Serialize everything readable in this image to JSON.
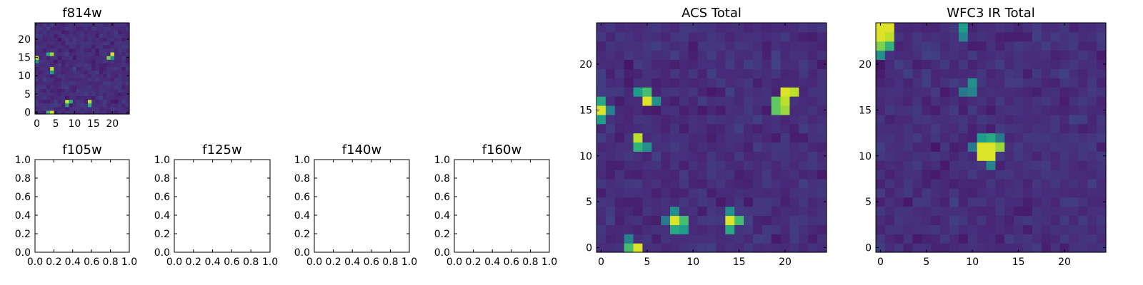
{
  "figure": {
    "colormap": [
      "#440154",
      "#482878",
      "#3e4989",
      "#31688e",
      "#26828e",
      "#1f9e89",
      "#35b779",
      "#6ece58",
      "#b5de2b",
      "#fde725"
    ],
    "axis_color": "#000000"
  },
  "chart_data": [
    {
      "type": "heatmap",
      "id": "f814w",
      "title": "f814w",
      "grid": false,
      "xticks": [
        "0",
        "5",
        "10",
        "15",
        "20"
      ],
      "yticks": [
        "0",
        "5",
        "10",
        "15",
        "20"
      ],
      "xlim": [
        -0.5,
        24.5
      ],
      "ylim": [
        -0.5,
        24.5
      ],
      "bright_sources": [
        [
          4,
          0,
          0.95
        ],
        [
          3,
          0,
          0.7
        ],
        [
          0,
          15,
          0.9
        ],
        [
          0,
          14,
          0.5
        ],
        [
          4,
          16,
          0.85
        ],
        [
          3,
          16,
          0.6
        ],
        [
          4,
          12,
          0.9
        ],
        [
          4,
          11,
          0.55
        ],
        [
          20,
          16,
          0.95
        ],
        [
          19,
          15,
          0.8
        ],
        [
          20,
          15,
          0.5
        ],
        [
          8,
          3,
          0.9
        ],
        [
          9,
          3,
          0.6
        ],
        [
          8,
          2,
          0.5
        ],
        [
          14,
          3,
          0.9
        ],
        [
          14,
          2,
          0.6
        ]
      ]
    },
    {
      "type": "empty",
      "id": "f105w",
      "title": "f105w",
      "xticks": [
        "0.0",
        "0.2",
        "0.4",
        "0.6",
        "0.8",
        "1.0"
      ],
      "yticks": [
        "0.0",
        "0.2",
        "0.4",
        "0.6",
        "0.8",
        "1.0"
      ],
      "xlim": [
        0,
        1
      ],
      "ylim": [
        0,
        1
      ]
    },
    {
      "type": "empty",
      "id": "f125w",
      "title": "f125w",
      "xticks": [
        "0.0",
        "0.2",
        "0.4",
        "0.6",
        "0.8",
        "1.0"
      ],
      "yticks": [
        "0.0",
        "0.2",
        "0.4",
        "0.6",
        "0.8",
        "1.0"
      ],
      "xlim": [
        0,
        1
      ],
      "ylim": [
        0,
        1
      ]
    },
    {
      "type": "empty",
      "id": "f140w",
      "title": "f140w",
      "xticks": [
        "0.0",
        "0.2",
        "0.4",
        "0.6",
        "0.8",
        "1.0"
      ],
      "yticks": [
        "0.0",
        "0.2",
        "0.4",
        "0.6",
        "0.8",
        "1.0"
      ],
      "xlim": [
        0,
        1
      ],
      "ylim": [
        0,
        1
      ]
    },
    {
      "type": "empty",
      "id": "f160w",
      "title": "f160w",
      "xticks": [
        "0.0",
        "0.2",
        "0.4",
        "0.6",
        "0.8",
        "1.0"
      ],
      "yticks": [
        "0.0",
        "0.2",
        "0.4",
        "0.6",
        "0.8",
        "1.0"
      ],
      "xlim": [
        0,
        1
      ],
      "ylim": [
        0,
        1
      ]
    },
    {
      "type": "heatmap",
      "id": "acs_total",
      "title": "ACS Total",
      "grid": false,
      "xticks": [
        "0",
        "5",
        "10",
        "15",
        "20"
      ],
      "yticks": [
        "0",
        "5",
        "10",
        "15",
        "20"
      ],
      "xlim": [
        -0.5,
        24.5
      ],
      "ylim": [
        -0.5,
        24.5
      ],
      "bright_sources": [
        [
          4,
          0,
          0.95
        ],
        [
          3,
          0,
          0.7
        ],
        [
          3,
          1,
          0.45
        ],
        [
          0,
          15,
          0.95
        ],
        [
          0,
          16,
          0.6
        ],
        [
          0,
          14,
          0.55
        ],
        [
          1,
          15,
          0.45
        ],
        [
          5,
          16,
          0.95
        ],
        [
          5,
          17,
          0.7
        ],
        [
          4,
          17,
          0.55
        ],
        [
          6,
          16,
          0.5
        ],
        [
          4,
          12,
          0.9
        ],
        [
          4,
          11,
          0.65
        ],
        [
          5,
          11,
          0.5
        ],
        [
          20,
          17,
          0.95
        ],
        [
          21,
          17,
          0.9
        ],
        [
          20,
          16,
          0.9
        ],
        [
          19,
          16,
          0.75
        ],
        [
          19,
          15,
          0.75
        ],
        [
          20,
          15,
          0.85
        ],
        [
          8,
          3,
          0.95
        ],
        [
          9,
          3,
          0.7
        ],
        [
          8,
          2,
          0.6
        ],
        [
          9,
          2,
          0.55
        ],
        [
          8,
          4,
          0.5
        ],
        [
          7,
          3,
          0.4
        ],
        [
          14,
          3,
          0.95
        ],
        [
          15,
          3,
          0.7
        ],
        [
          14,
          2,
          0.6
        ],
        [
          14,
          4,
          0.5
        ]
      ]
    },
    {
      "type": "heatmap",
      "id": "wfc3_ir_total",
      "title": "WFC3 IR Total",
      "grid": false,
      "xticks": [
        "0",
        "5",
        "10",
        "15",
        "20"
      ],
      "yticks": [
        "0",
        "5",
        "10",
        "15",
        "20"
      ],
      "xlim": [
        -0.5,
        24.5
      ],
      "ylim": [
        -0.5,
        24.5
      ],
      "bright_sources": [
        [
          0,
          24,
          0.95
        ],
        [
          1,
          24,
          0.95
        ],
        [
          0,
          23,
          0.95
        ],
        [
          1,
          23,
          0.9
        ],
        [
          0,
          22,
          0.8
        ],
        [
          1,
          22,
          0.65
        ],
        [
          0,
          21,
          0.5
        ],
        [
          9,
          24,
          0.55
        ],
        [
          9,
          23,
          0.45
        ],
        [
          10,
          18,
          0.5
        ],
        [
          10,
          17,
          0.45
        ],
        [
          9,
          17,
          0.4
        ],
        [
          11,
          11,
          0.95
        ],
        [
          12,
          11,
          0.95
        ],
        [
          11,
          10,
          0.95
        ],
        [
          12,
          10,
          0.95
        ],
        [
          13,
          11,
          0.85
        ],
        [
          12,
          12,
          0.6
        ],
        [
          11,
          12,
          0.55
        ],
        [
          13,
          12,
          0.4
        ],
        [
          12,
          9,
          0.45
        ],
        [
          10,
          11,
          0.4
        ]
      ]
    }
  ]
}
